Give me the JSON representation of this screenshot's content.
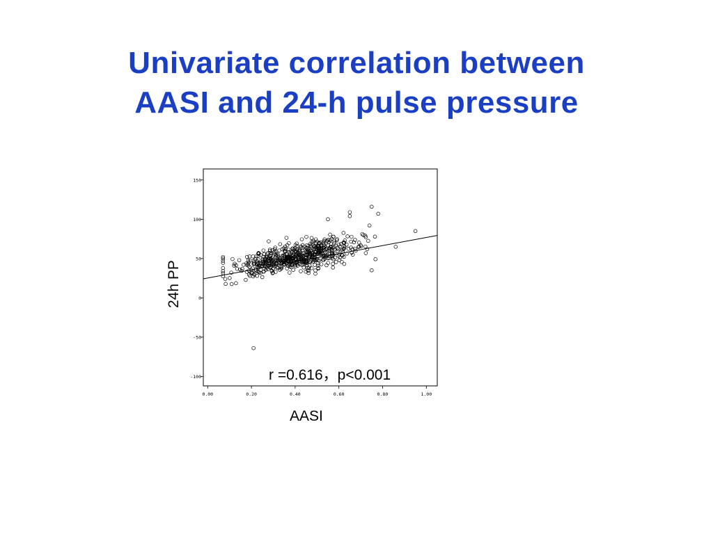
{
  "slide": {
    "title_line1": "Univariate correlation between",
    "title_line2": "AASI and 24-h pulse pressure",
    "title_color": "#1a3fc4"
  },
  "chart_data": {
    "type": "scatter",
    "xlabel": "AASI",
    "ylabel": "24h PP",
    "xlim": [
      -0.02,
      1.05
    ],
    "ylim": [
      -112,
      164
    ],
    "x_ticks": [
      "0.00",
      "0.20",
      "0.40",
      "0.60",
      "0.80",
      "1.00"
    ],
    "y_ticks": [
      "150",
      "100",
      "50",
      "0",
      "-50",
      "-100"
    ],
    "annotation": "r =0.616，p<0.001",
    "fit_line": {
      "intercept": 25.3,
      "slope": 51.5
    },
    "outliers": [
      {
        "x": 0.21,
        "y": -64
      },
      {
        "x": 0.65,
        "y": 109
      },
      {
        "x": 0.65,
        "y": 104
      },
      {
        "x": 0.75,
        "y": 116
      },
      {
        "x": 0.78,
        "y": 107
      },
      {
        "x": 0.95,
        "y": 85
      },
      {
        "x": 0.86,
        "y": 65
      },
      {
        "x": 0.75,
        "y": 35
      },
      {
        "x": 0.07,
        "y": 38
      },
      {
        "x": 0.55,
        "y": 100
      }
    ],
    "cluster": {
      "x_mean": 0.4,
      "x_sd": 0.14,
      "x_min": 0.07,
      "x_max": 0.87,
      "y_sd": 9,
      "count": 620
    },
    "grid": false
  }
}
